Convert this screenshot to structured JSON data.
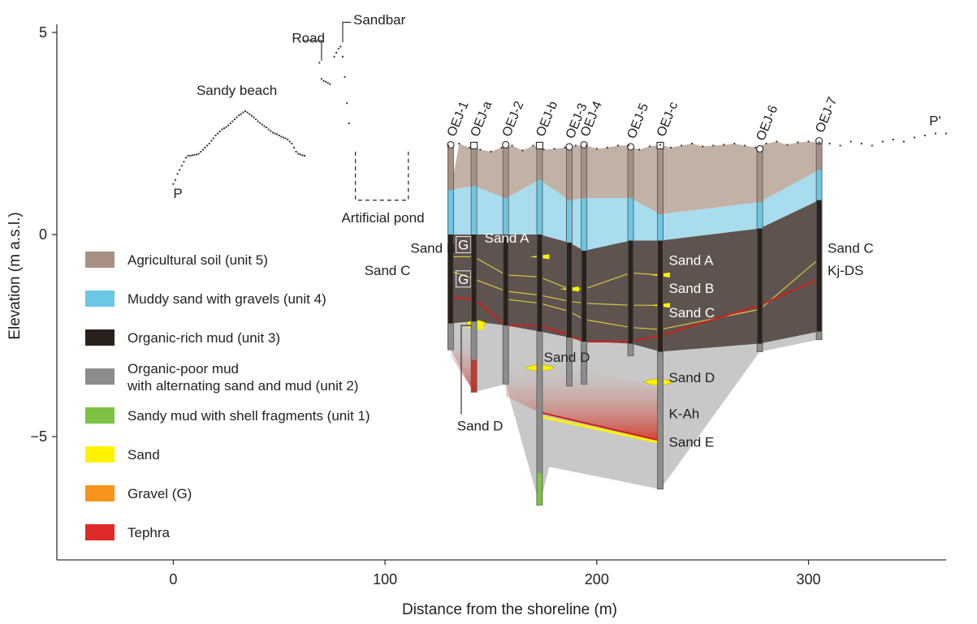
{
  "chart_data": {
    "type": "cross-section",
    "xlabel": "Distance from the shoreline (m)",
    "ylabel": "Elevation (m a.s.l.)",
    "xlim": [
      -55,
      365
    ],
    "ylim": [
      -8.05,
      5.2
    ],
    "x_ticks": [
      0,
      100,
      200,
      300
    ],
    "x_tick_labels": [
      "0",
      "100",
      "200",
      "300"
    ],
    "y_ticks": [
      5,
      0,
      -5
    ],
    "y_tick_labels": [
      "5",
      "0",
      "−5"
    ],
    "profile_points": [
      [
        0,
        1.25
      ],
      [
        1,
        1.35
      ],
      [
        2,
        1.5
      ],
      [
        3,
        1.6
      ],
      [
        4,
        1.7
      ],
      [
        5,
        1.8
      ],
      [
        6,
        1.9
      ],
      [
        7,
        1.95
      ],
      [
        8,
        1.95
      ],
      [
        9,
        1.96
      ],
      [
        10,
        1.97
      ],
      [
        11,
        1.98
      ],
      [
        12,
        2.0
      ],
      [
        13,
        2.05
      ],
      [
        14,
        2.1
      ],
      [
        15,
        2.15
      ],
      [
        16,
        2.2
      ],
      [
        17,
        2.25
      ],
      [
        18,
        2.32
      ],
      [
        19,
        2.38
      ],
      [
        20,
        2.45
      ],
      [
        21,
        2.5
      ],
      [
        22,
        2.55
      ],
      [
        23,
        2.6
      ],
      [
        24,
        2.63
      ],
      [
        25,
        2.66
      ],
      [
        26,
        2.7
      ],
      [
        27,
        2.75
      ],
      [
        28,
        2.8
      ],
      [
        29,
        2.85
      ],
      [
        30,
        2.9
      ],
      [
        31,
        2.95
      ],
      [
        32,
        2.98
      ],
      [
        33,
        3.02
      ],
      [
        34,
        3.05
      ],
      [
        35,
        3.02
      ],
      [
        36,
        2.98
      ],
      [
        37,
        2.94
      ],
      [
        38,
        2.9
      ],
      [
        39,
        2.85
      ],
      [
        40,
        2.8
      ],
      [
        41,
        2.76
      ],
      [
        42,
        2.72
      ],
      [
        43,
        2.68
      ],
      [
        44,
        2.65
      ],
      [
        45,
        2.6
      ],
      [
        46,
        2.56
      ],
      [
        47,
        2.52
      ],
      [
        48,
        2.5
      ],
      [
        49,
        2.48
      ],
      [
        50,
        2.45
      ],
      [
        51,
        2.42
      ],
      [
        52,
        2.4
      ],
      [
        53,
        2.38
      ],
      [
        54,
        2.35
      ],
      [
        55,
        2.3
      ],
      [
        56,
        2.25
      ],
      [
        57,
        2.15
      ],
      [
        58,
        2.05
      ],
      [
        59,
        2.0
      ],
      [
        60,
        1.98
      ],
      [
        61,
        1.96
      ],
      [
        62,
        1.95
      ],
      [
        69,
        4.25
      ],
      [
        70,
        3.85
      ],
      [
        71,
        3.8
      ],
      [
        72,
        3.78
      ],
      [
        73,
        3.75
      ],
      [
        74,
        3.72
      ],
      [
        76,
        4.4
      ],
      [
        77,
        4.5
      ],
      [
        78,
        4.6
      ],
      [
        79,
        4.65
      ],
      [
        80,
        4.4
      ],
      [
        81,
        3.9
      ],
      [
        82,
        3.25
      ],
      [
        83,
        2.75
      ]
    ],
    "ground_surface": [
      [
        130,
        2.2
      ],
      [
        135,
        2.25
      ],
      [
        140,
        2.15
      ],
      [
        145,
        2.1
      ],
      [
        150,
        2.05
      ],
      [
        155,
        2.15
      ],
      [
        160,
        2.2
      ],
      [
        165,
        2.08
      ],
      [
        170,
        2.2
      ],
      [
        175,
        2.1
      ],
      [
        180,
        2.12
      ],
      [
        185,
        2.15
      ],
      [
        190,
        2.2
      ],
      [
        195,
        2.2
      ],
      [
        200,
        2.12
      ],
      [
        205,
        2.15
      ],
      [
        210,
        2.2
      ],
      [
        215,
        2.2
      ],
      [
        220,
        2.1
      ],
      [
        225,
        2.18
      ],
      [
        230,
        2.22
      ],
      [
        235,
        2.15
      ],
      [
        240,
        2.2
      ],
      [
        245,
        2.25
      ],
      [
        250,
        2.18
      ],
      [
        255,
        2.2
      ],
      [
        260,
        2.22
      ],
      [
        265,
        2.25
      ],
      [
        270,
        2.2
      ],
      [
        275,
        2.15
      ],
      [
        280,
        2.25
      ],
      [
        285,
        2.3
      ],
      [
        290,
        2.22
      ],
      [
        295,
        2.28
      ],
      [
        300,
        2.3
      ],
      [
        305,
        2.28
      ],
      [
        310,
        2.25
      ],
      [
        315,
        2.2
      ],
      [
        320,
        2.3
      ],
      [
        325,
        2.25
      ],
      [
        330,
        2.2
      ],
      [
        335,
        2.3
      ],
      [
        340,
        2.35
      ],
      [
        345,
        2.3
      ],
      [
        350,
        2.4
      ],
      [
        355,
        2.45
      ],
      [
        360,
        2.5
      ],
      [
        365,
        2.5
      ]
    ],
    "artificial_pond": {
      "x": [
        86,
        111
      ],
      "bottom": 0.85,
      "top": 2.05
    },
    "boreholes": [
      {
        "name": "OEJ-1",
        "x": 131,
        "top": 2.2,
        "bottom": -2.85,
        "marker": "circle"
      },
      {
        "name": "OEJ-a",
        "x": 142,
        "top": 2.2,
        "bottom": -3.9,
        "marker": "square"
      },
      {
        "name": "OEJ-2",
        "x": 157,
        "top": 2.2,
        "bottom": -3.7,
        "marker": "circle"
      },
      {
        "name": "OEJ-b",
        "x": 173,
        "top": 2.2,
        "bottom": -6.7,
        "marker": "square"
      },
      {
        "name": "OEJ-3",
        "x": 187,
        "top": 2.15,
        "bottom": -3.75,
        "marker": "circle"
      },
      {
        "name": "OEJ-4",
        "x": 194,
        "top": 2.2,
        "bottom": -3.7,
        "marker": "circle"
      },
      {
        "name": "OEJ-5",
        "x": 216,
        "top": 2.15,
        "bottom": -3.0,
        "marker": "circle"
      },
      {
        "name": "OEJ-c",
        "x": 230,
        "top": 2.2,
        "bottom": -6.3,
        "marker": "square"
      },
      {
        "name": "OEJ-6",
        "x": 277,
        "top": 2.1,
        "bottom": -2.9,
        "marker": "circle"
      },
      {
        "name": "OEJ-7",
        "x": 305,
        "top": 2.3,
        "bottom": -2.6,
        "marker": "circle"
      }
    ],
    "units": [
      {
        "name": "Agricultural soil (unit 5)",
        "color": "#c2b2a6"
      },
      {
        "name": "Muddy sand with gravels (unit 4)",
        "color": "#a9dcee"
      },
      {
        "name": "Organic-rich mud (unit 3)",
        "color": "#5e534e"
      },
      {
        "name": "Organic-poor mud with alternating sand and mud (unit 2)",
        "color": "#c8c8c8"
      }
    ],
    "unit_boundaries": {
      "x": [
        131,
        142,
        157,
        173,
        187,
        194,
        216,
        230,
        277,
        305
      ],
      "top_unit4": [
        1.1,
        1.2,
        0.9,
        1.35,
        0.85,
        0.9,
        0.9,
        0.5,
        0.8,
        1.6
      ],
      "top_unit3": [
        0.0,
        0.0,
        0.0,
        0.0,
        -0.2,
        -0.4,
        -0.15,
        -0.15,
        0.15,
        0.85
      ],
      "top_unit2": [
        -2.2,
        -2.15,
        -2.25,
        -2.4,
        -2.55,
        -2.65,
        -2.7,
        -2.9,
        -2.7,
        -2.4
      ]
    },
    "tephra_lines": [
      {
        "name": "Kj-DS",
        "color": "#cc1f1f",
        "x": [
          131,
          142,
          157,
          173,
          187,
          194,
          216,
          230,
          277,
          305
        ],
        "y": [
          -1.55,
          -1.6,
          -2.25,
          -2.25,
          -2.5,
          -2.65,
          -2.65,
          -2.5,
          -1.75,
          -1.1
        ]
      },
      {
        "name": "K-Ah",
        "color": "#cc1f1f",
        "x": [
          173,
          230
        ],
        "y": [
          -4.4,
          -5.1
        ]
      }
    ],
    "sand_lines": [
      {
        "name": "Sand A",
        "x": [
          131,
          142,
          157,
          173,
          187,
          194,
          216,
          230
        ],
        "y": [
          -0.55,
          -0.55,
          -1.0,
          -1.05,
          -1.35,
          -1.35,
          -0.95,
          -1.0
        ]
      },
      {
        "name": "Sand B",
        "x": [
          131,
          142,
          157,
          173,
          187,
          194,
          216,
          230
        ],
        "y": [
          -0.9,
          -1.1,
          -1.4,
          -1.5,
          -1.65,
          -1.7,
          -1.75,
          -1.75
        ]
      },
      {
        "name": "Sand C",
        "x": [
          157,
          173,
          187,
          194,
          216,
          230,
          277,
          305
        ],
        "y": [
          -1.6,
          -1.7,
          -1.9,
          -2.1,
          -2.3,
          -2.35,
          -1.85,
          -0.6
        ]
      },
      {
        "name": "Sand E",
        "x": [
          173,
          230
        ],
        "y": [
          -4.5,
          -5.15
        ]
      }
    ],
    "sand_lenses": [
      {
        "name": "Sand D",
        "x": [
          166,
          180
        ],
        "y": -3.3
      },
      {
        "name": "Sand D",
        "x": [
          222,
          236
        ],
        "y": -3.65
      },
      {
        "name": "Sand D",
        "x": [
          138,
          148
        ],
        "y": -2.2
      }
    ],
    "gravel_boxes": [
      {
        "x": 137,
        "y": -0.25,
        "label": "G"
      },
      {
        "x": 137,
        "y": -1.1,
        "label": "G"
      }
    ],
    "annotations": [
      {
        "text": "P",
        "x": 0,
        "y": 0.9,
        "style": "dark"
      },
      {
        "text": "Sandy beach",
        "x": 30,
        "y": 3.45,
        "style": "dark"
      },
      {
        "text": "Road",
        "x": 56,
        "y": 4.75,
        "style": "dark"
      },
      {
        "text": "Sandbar",
        "x": 85,
        "y": 5.2,
        "style": "dark"
      },
      {
        "text": "Artificial pond",
        "x": 99,
        "y": 0.3,
        "style": "dark"
      },
      {
        "text": "P'",
        "x": 357,
        "y": 2.7,
        "style": "dark"
      },
      {
        "text": "Sand B",
        "x": 112,
        "y": -0.45,
        "style": "dark"
      },
      {
        "text": "Sand C",
        "x": 112,
        "y": -1.0,
        "style": "dark"
      },
      {
        "text": "Sand A",
        "x": 147,
        "y": -0.2,
        "style": "light"
      },
      {
        "text": "Sand A",
        "x": 234,
        "y": -0.75,
        "style": "light"
      },
      {
        "text": "Sand B",
        "x": 234,
        "y": -1.45,
        "style": "light"
      },
      {
        "text": "Sand C",
        "x": 234,
        "y": -2.05,
        "style": "light"
      },
      {
        "text": "Sand D",
        "x": 175,
        "y": -3.15,
        "style": "dark"
      },
      {
        "text": "Sand D",
        "x": 234,
        "y": -3.65,
        "style": "dark"
      },
      {
        "text": "Sand D",
        "x": 134,
        "y": -4.85,
        "style": "dark"
      },
      {
        "text": "K-Ah",
        "x": 234,
        "y": -4.55,
        "style": "dark"
      },
      {
        "text": "Sand E",
        "x": 234,
        "y": -5.25,
        "style": "dark"
      },
      {
        "text": "Sand C",
        "x": 309,
        "y": -0.45,
        "style": "dark"
      },
      {
        "text": "Kj-DS",
        "x": 309,
        "y": -1.0,
        "style": "dark"
      }
    ],
    "legend": {
      "placement": "left",
      "items": [
        {
          "lines": [
            "Agricultural soil (unit 5)"
          ],
          "color": "#a69184"
        },
        {
          "lines": [
            "Muddy sand with gravels (unit 4)"
          ],
          "color": "#6cc7e5"
        },
        {
          "lines": [
            "Organic-rich mud (unit 3)"
          ],
          "color": "#2b211c"
        },
        {
          "lines": [
            "Organic-poor mud",
            "with alternating sand and mud (unit 2)"
          ],
          "color": "#8c8c8c"
        },
        {
          "lines": [
            "Sandy mud with shell fragments (unit 1)"
          ],
          "color": "#7dc242"
        },
        {
          "lines": [
            "Sand"
          ],
          "color": "#fff200"
        },
        {
          "lines": [
            "Gravel (G)"
          ],
          "color": "#f7941d"
        },
        {
          "lines": [
            "Tephra"
          ],
          "color": "#e02a2a"
        }
      ]
    },
    "colors": {
      "axis": "#333333",
      "profile": "#333333",
      "sand": "#fff200",
      "tephra": "#cc1f1f",
      "unit1": "#7dc242",
      "borehole_stroke": "#555555"
    }
  }
}
